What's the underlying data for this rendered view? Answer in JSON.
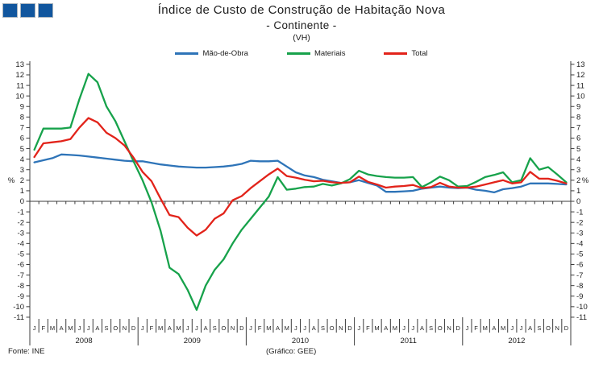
{
  "logo": {
    "square_color": "#11569E",
    "square_count": 3
  },
  "footer": {
    "fonte": "Fonte: INE",
    "grafico": "(Gráfico: GEE)"
  },
  "chart_data": {
    "type": "line",
    "title": "Índice de Custo de Construção de Habitação Nova",
    "subtitle": "- Continente -",
    "unit_note": "(VH)",
    "ylabel_left": "%",
    "ylabel_right": "%",
    "ylim": [
      -11,
      13
    ],
    "ytick_step": 1,
    "grid": false,
    "legend_position": "top",
    "years": [
      "2008",
      "2009",
      "2010",
      "2011",
      "2012"
    ],
    "categories_monthly": [
      "J",
      "F",
      "M",
      "A",
      "M",
      "J",
      "J",
      "A",
      "S",
      "O",
      "N",
      "D",
      "J",
      "F",
      "M",
      "A",
      "M",
      "J",
      "J",
      "A",
      "S",
      "O",
      "N",
      "D",
      "J",
      "F",
      "M",
      "A",
      "M",
      "J",
      "J",
      "A",
      "S",
      "O",
      "N",
      "D",
      "J",
      "F",
      "M",
      "A",
      "M",
      "J",
      "J",
      "A",
      "S",
      "O",
      "N",
      "D",
      "J",
      "F",
      "M",
      "A",
      "M",
      "J",
      "J",
      "A",
      "S",
      "O",
      "N",
      "D"
    ],
    "series": [
      {
        "name": "Mão-de-Obra",
        "color": "#2E74B8",
        "values": [
          3.7,
          3.9,
          4.1,
          4.45,
          4.4,
          4.35,
          4.25,
          4.15,
          4.05,
          3.95,
          3.85,
          3.8,
          3.8,
          3.65,
          3.5,
          3.4,
          3.3,
          3.25,
          3.2,
          3.2,
          3.25,
          3.3,
          3.4,
          3.55,
          3.85,
          3.8,
          3.8,
          3.85,
          3.3,
          2.75,
          2.45,
          2.3,
          2.05,
          1.9,
          1.75,
          1.8,
          2.0,
          1.75,
          1.5,
          0.9,
          0.9,
          0.95,
          1.0,
          1.2,
          1.3,
          1.4,
          1.3,
          1.25,
          1.3,
          1.1,
          1.0,
          0.85,
          1.15,
          1.25,
          1.4,
          1.7,
          1.7,
          1.7,
          1.65,
          1.6
        ]
      },
      {
        "name": "Materiais",
        "color": "#17A24B",
        "values": [
          4.9,
          6.9,
          6.9,
          6.9,
          7.0,
          9.7,
          12.1,
          11.3,
          9.0,
          7.6,
          5.7,
          3.8,
          2.0,
          -0.1,
          -2.8,
          -6.3,
          -6.9,
          -8.4,
          -10.3,
          -8.0,
          -6.5,
          -5.5,
          -4.0,
          -2.7,
          -1.65,
          -0.6,
          0.45,
          2.3,
          1.1,
          1.2,
          1.35,
          1.4,
          1.65,
          1.5,
          1.7,
          2.1,
          2.9,
          2.55,
          2.4,
          2.3,
          2.25,
          2.25,
          2.3,
          1.35,
          1.8,
          2.35,
          2.0,
          1.4,
          1.45,
          1.85,
          2.3,
          2.5,
          2.75,
          1.8,
          2.0,
          4.1,
          3.0,
          3.25,
          2.55,
          1.8
        ]
      },
      {
        "name": "Total",
        "color": "#E2231A",
        "values": [
          4.2,
          5.5,
          5.6,
          5.7,
          5.9,
          7.0,
          7.9,
          7.5,
          6.5,
          6.0,
          5.3,
          4.15,
          2.8,
          1.9,
          0.25,
          -1.3,
          -1.5,
          -2.5,
          -3.25,
          -2.7,
          -1.65,
          -1.15,
          0.1,
          0.5,
          1.25,
          1.9,
          2.55,
          3.1,
          2.4,
          2.25,
          2.05,
          1.9,
          1.95,
          1.8,
          1.75,
          1.8,
          2.35,
          1.85,
          1.6,
          1.3,
          1.4,
          1.45,
          1.55,
          1.25,
          1.35,
          1.75,
          1.4,
          1.3,
          1.3,
          1.4,
          1.6,
          1.8,
          2.0,
          1.7,
          1.8,
          2.8,
          2.15,
          2.15,
          1.95,
          1.7
        ]
      }
    ]
  }
}
